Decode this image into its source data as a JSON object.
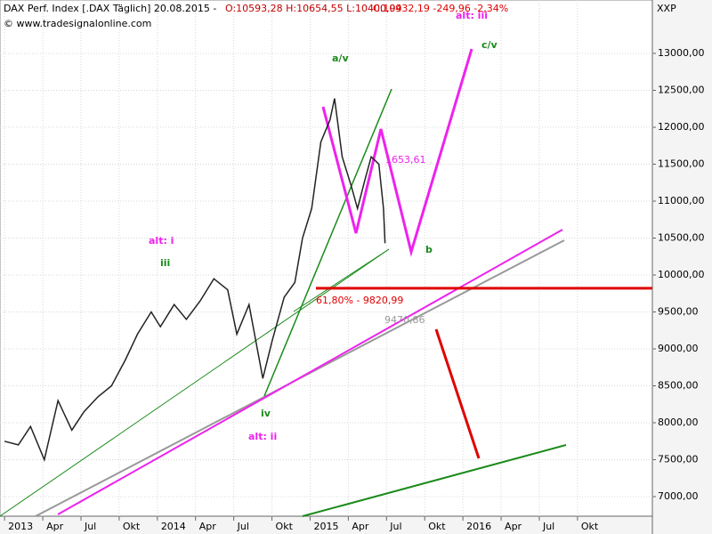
{
  "chart_data": {
    "type": "line",
    "header": {
      "instrument": "DAX Perf. Index [.DAX Täglich] 20.08.2015 -",
      "ohl": "O:10593,28 H:10654,55 L:10400,99",
      "close": "C:10432,19 -249,96 -2,34%"
    },
    "source": "© www.tradesignalonline.com",
    "y_axis_label": "XXP",
    "xlim": [
      2012.97,
      2017.24
    ],
    "ylim": [
      6735,
      13723
    ],
    "xticks": [
      {
        "value": 2013,
        "label": "2013"
      },
      {
        "value": 2013.25,
        "label": "Apr"
      },
      {
        "value": 2013.5,
        "label": "Jul"
      },
      {
        "value": 2013.75,
        "label": "Okt"
      },
      {
        "value": 2014,
        "label": "2014"
      },
      {
        "value": 2014.25,
        "label": "Apr"
      },
      {
        "value": 2014.5,
        "label": "Jul"
      },
      {
        "value": 2014.75,
        "label": "Okt"
      },
      {
        "value": 2015,
        "label": "2015"
      },
      {
        "value": 2015.25,
        "label": "Apr"
      },
      {
        "value": 2015.5,
        "label": "Jul"
      },
      {
        "value": 2015.75,
        "label": "Okt"
      },
      {
        "value": 2016,
        "label": "2016"
      },
      {
        "value": 2016.25,
        "label": "Apr"
      },
      {
        "value": 2016.5,
        "label": "Jul"
      },
      {
        "value": 2016.75,
        "label": "Okt"
      }
    ],
    "yticks": [
      {
        "value": 7000,
        "label": "7000,00"
      },
      {
        "value": 7500,
        "label": "7500,00"
      },
      {
        "value": 8000,
        "label": "8000,00"
      },
      {
        "value": 8500,
        "label": "8500,00"
      },
      {
        "value": 9000,
        "label": "9000,00"
      },
      {
        "value": 9500,
        "label": "9500,00"
      },
      {
        "value": 10000,
        "label": "10000,00"
      },
      {
        "value": 10500,
        "label": "10500,00"
      },
      {
        "value": 11000,
        "label": "11000,00"
      },
      {
        "value": 11500,
        "label": "11500,00"
      },
      {
        "value": 12000,
        "label": "12000,00"
      },
      {
        "value": 12500,
        "label": "12500,00"
      },
      {
        "value": 13000,
        "label": "13000,00"
      }
    ],
    "grid": true,
    "series": [
      {
        "name": "DAX",
        "color": "#222222",
        "x": [
          2013.0,
          2013.09,
          2013.17,
          2013.26,
          2013.35,
          2013.44,
          2013.52,
          2013.61,
          2013.7,
          2013.79,
          2013.87,
          2013.96,
          2014.02,
          2014.11,
          2014.19,
          2014.28,
          2014.37,
          2014.46,
          2014.52,
          2014.6,
          2014.69,
          2014.75,
          2014.83,
          2014.9,
          2014.95,
          2015.01,
          2015.07,
          2015.13,
          2015.16,
          2015.21,
          2015.27,
          2015.31,
          2015.36,
          2015.4,
          2015.45,
          2015.48,
          2015.49
        ],
        "values": [
          7750,
          7700,
          7950,
          7500,
          8300,
          7900,
          8150,
          8350,
          8500,
          8850,
          9200,
          9500,
          9300,
          9600,
          9400,
          9650,
          9950,
          9800,
          9200,
          9600,
          8600,
          9100,
          9700,
          9900,
          10500,
          10900,
          11800,
          12100,
          12390,
          11600,
          11200,
          10900,
          11300,
          11600,
          11500,
          10900,
          10430
        ]
      }
    ],
    "fib_level": {
      "value": 9820.99,
      "label": "61,80% - 9820,99",
      "color": "#e00000"
    },
    "annotations": [
      {
        "text": "a/v",
        "color": "#1a8a1a"
      },
      {
        "text": "c/v",
        "color": "#1a8a1a"
      },
      {
        "text": "alt: iii",
        "color": "#ee22ee"
      },
      {
        "text": "alt: i",
        "color": "#ee22ee"
      },
      {
        "text": "iii",
        "color": "#1a8a1a"
      },
      {
        "text": "b",
        "color": "#1a8a1a"
      },
      {
        "text": "iv",
        "color": "#1a8a1a"
      },
      {
        "text": "alt: ii",
        "color": "#ee22ee"
      },
      {
        "text": "1653,61",
        "color": "#ee22ee"
      },
      {
        "text": "9470,86",
        "color": "#999999"
      }
    ]
  }
}
